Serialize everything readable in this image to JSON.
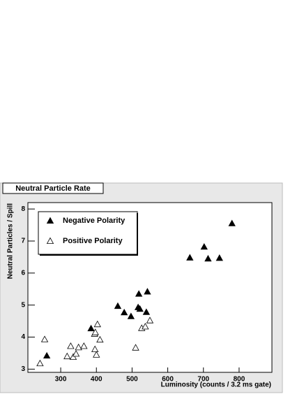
{
  "chart_data": {
    "type": "scatter",
    "title": "Neutral Particle Rate",
    "x_label": "Luminosity (counts / 3.2 ms gate)",
    "y_label": "Neutral Particles / Spill",
    "xlim": [
      208,
      892
    ],
    "xticks": [
      300,
      400,
      500,
      600,
      700,
      800
    ],
    "ylim": [
      2.9,
      8.2
    ],
    "yticks": [
      3,
      4,
      5,
      6,
      7,
      8
    ],
    "legend": "upper left",
    "series": [
      {
        "name": "Negative Polarity",
        "color": "#000000",
        "marker": "filled-triangle",
        "x": [
          261,
          385,
          460,
          478,
          497,
          517,
          519,
          522,
          540,
          543,
          662,
          702,
          713,
          745,
          780
        ],
        "values": [
          3.42,
          4.27,
          4.97,
          4.77,
          4.65,
          4.93,
          5.35,
          4.88,
          4.78,
          5.42,
          6.48,
          6.82,
          6.45,
          6.47,
          7.55
        ]
      },
      {
        "name": "Positive Polarity",
        "color": "#000000",
        "marker": "open-triangle",
        "x": [
          242,
          255,
          318,
          328,
          335,
          343,
          350,
          365,
          395,
          396,
          397,
          400,
          403,
          410,
          510,
          527,
          537,
          550
        ],
        "values": [
          3.18,
          3.93,
          3.4,
          3.72,
          3.38,
          3.48,
          3.68,
          3.72,
          4.1,
          3.62,
          4.15,
          3.45,
          4.4,
          3.92,
          3.67,
          4.28,
          4.33,
          4.52
        ]
      }
    ]
  }
}
